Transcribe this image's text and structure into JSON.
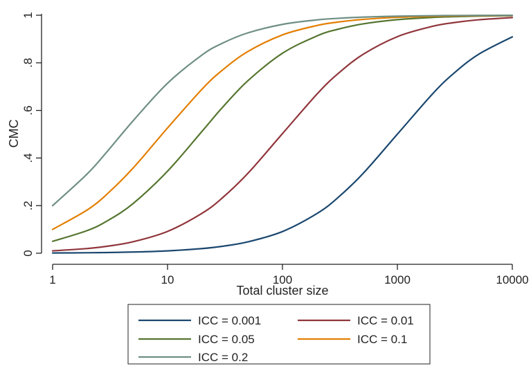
{
  "chart_data": {
    "type": "line",
    "title": "",
    "xlabel": "Total cluster size",
    "ylabel": "CMC",
    "xscale": "log",
    "xlim": [
      1,
      10000
    ],
    "ylim": [
      0,
      1
    ],
    "x_ticks": [
      {
        "value": 1,
        "label": "1"
      },
      {
        "value": 10,
        "label": "10"
      },
      {
        "value": 100,
        "label": "100"
      },
      {
        "value": 1000,
        "label": "1000"
      },
      {
        "value": 10000,
        "label": "10000"
      }
    ],
    "y_ticks": [
      {
        "value": 0,
        "label": "0"
      },
      {
        "value": 0.2,
        "label": ".2"
      },
      {
        "value": 0.4,
        "label": ".4"
      },
      {
        "value": 0.6,
        "label": ".6"
      },
      {
        "value": 0.8,
        "label": ".8"
      },
      {
        "value": 1,
        "label": "1"
      }
    ],
    "grid": false,
    "legend_position": "bottom",
    "x": [
      1,
      2,
      3,
      5,
      10,
      20,
      30,
      50,
      100,
      200,
      300,
      500,
      1000,
      2000,
      3000,
      5000,
      10000
    ],
    "series": [
      {
        "name": "ICC = 0.001",
        "color": "#1a476f",
        "values": [
          0.001,
          0.002,
          0.003,
          0.005,
          0.0099,
          0.0196,
          0.0291,
          0.0477,
          0.091,
          0.1669,
          0.2313,
          0.3338,
          0.5003,
          0.6669,
          0.7501,
          0.8335,
          0.9092
        ]
      },
      {
        "name": "ICC = 0.01",
        "color": "#90353b",
        "values": [
          0.01,
          0.0198,
          0.0294,
          0.0481,
          0.0917,
          0.1681,
          0.2326,
          0.3356,
          0.5025,
          0.6689,
          0.7519,
          0.8347,
          0.9099,
          0.9528,
          0.968,
          0.9806,
          0.9902
        ]
      },
      {
        "name": "ICC = 0.05",
        "color": "#55752f",
        "values": [
          0.05,
          0.0952,
          0.1364,
          0.2083,
          0.3448,
          0.5128,
          0.6122,
          0.7246,
          0.8403,
          0.9132,
          0.9404,
          0.9634,
          0.9814,
          0.9906,
          0.9937,
          0.9962,
          0.9981
        ]
      },
      {
        "name": "ICC = 0.1",
        "color": "#e37e00",
        "values": [
          0.1,
          0.1818,
          0.25,
          0.3571,
          0.5263,
          0.6897,
          0.7692,
          0.8475,
          0.9174,
          0.9569,
          0.9709,
          0.9823,
          0.9911,
          0.9955,
          0.997,
          0.9982,
          0.9991
        ]
      },
      {
        "name": "ICC = 0.2",
        "color": "#6e8e84",
        "values": [
          0.2,
          0.3333,
          0.4286,
          0.5556,
          0.7143,
          0.8333,
          0.8824,
          0.9259,
          0.9615,
          0.9804,
          0.9868,
          0.9921,
          0.996,
          0.998,
          0.9987,
          0.9992,
          0.9996
        ]
      }
    ]
  }
}
